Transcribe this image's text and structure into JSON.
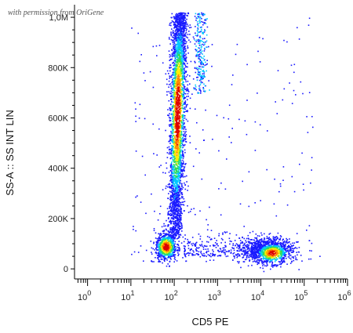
{
  "watermark": "with permission from OriGene",
  "chart_data": {
    "type": "scatter",
    "title": "",
    "xlabel": "CD5 PE",
    "ylabel": "SS-A :: SS INT LIN",
    "x_scale": "log",
    "xlim": [
      0.5,
      1000000
    ],
    "ylim": [
      -40000,
      1050000
    ],
    "x_ticks": [
      {
        "value": 1,
        "base": "10",
        "exp": "0"
      },
      {
        "value": 10,
        "base": "10",
        "exp": "1"
      },
      {
        "value": 100,
        "base": "10",
        "exp": "2"
      },
      {
        "value": 1000,
        "base": "10",
        "exp": "3"
      },
      {
        "value": 10000,
        "base": "10",
        "exp": "4"
      },
      {
        "value": 100000,
        "base": "10",
        "exp": "5"
      },
      {
        "value": 1000000,
        "base": "10",
        "exp": "6"
      }
    ],
    "y_ticks": [
      {
        "value": 0,
        "label": "0"
      },
      {
        "value": 200000,
        "label": "200K"
      },
      {
        "value": 400000,
        "label": "400K"
      },
      {
        "value": 600000,
        "label": "600K"
      },
      {
        "value": 800000,
        "label": "800K"
      },
      {
        "value": 1000000,
        "label": "1,0M"
      }
    ],
    "color_scale": [
      "#1a1aff",
      "#00c8ff",
      "#33dd55",
      "#ffee00",
      "#ff8800",
      "#dd0000"
    ],
    "populations": [
      {
        "name_hidden": true,
        "x_center_log10": 2.05,
        "x_spread_log10": 0.09,
        "y_range": [
          120000,
          1020000
        ],
        "y_peak": 620000,
        "density": "high"
      },
      {
        "name_hidden": true,
        "x_center_log10": 1.8,
        "x_spread_log10": 0.12,
        "y_center": 90000,
        "y_spread": 25000,
        "density": "high"
      },
      {
        "name_hidden": true,
        "x_center_log10": 4.15,
        "x_spread_log10": 0.28,
        "y_center": 75000,
        "y_spread": 25000,
        "density": "high"
      },
      {
        "name_hidden": true,
        "x_center_log10": 2.6,
        "x_spread_log10": 0.08,
        "y_range": [
          700000,
          1020000
        ],
        "density": "low"
      },
      {
        "name_hidden": true,
        "x_center_log10": 3.2,
        "x_spread_log10": 0.9,
        "y_range": [
          50000,
          1000000
        ],
        "density": "sparse"
      }
    ]
  }
}
